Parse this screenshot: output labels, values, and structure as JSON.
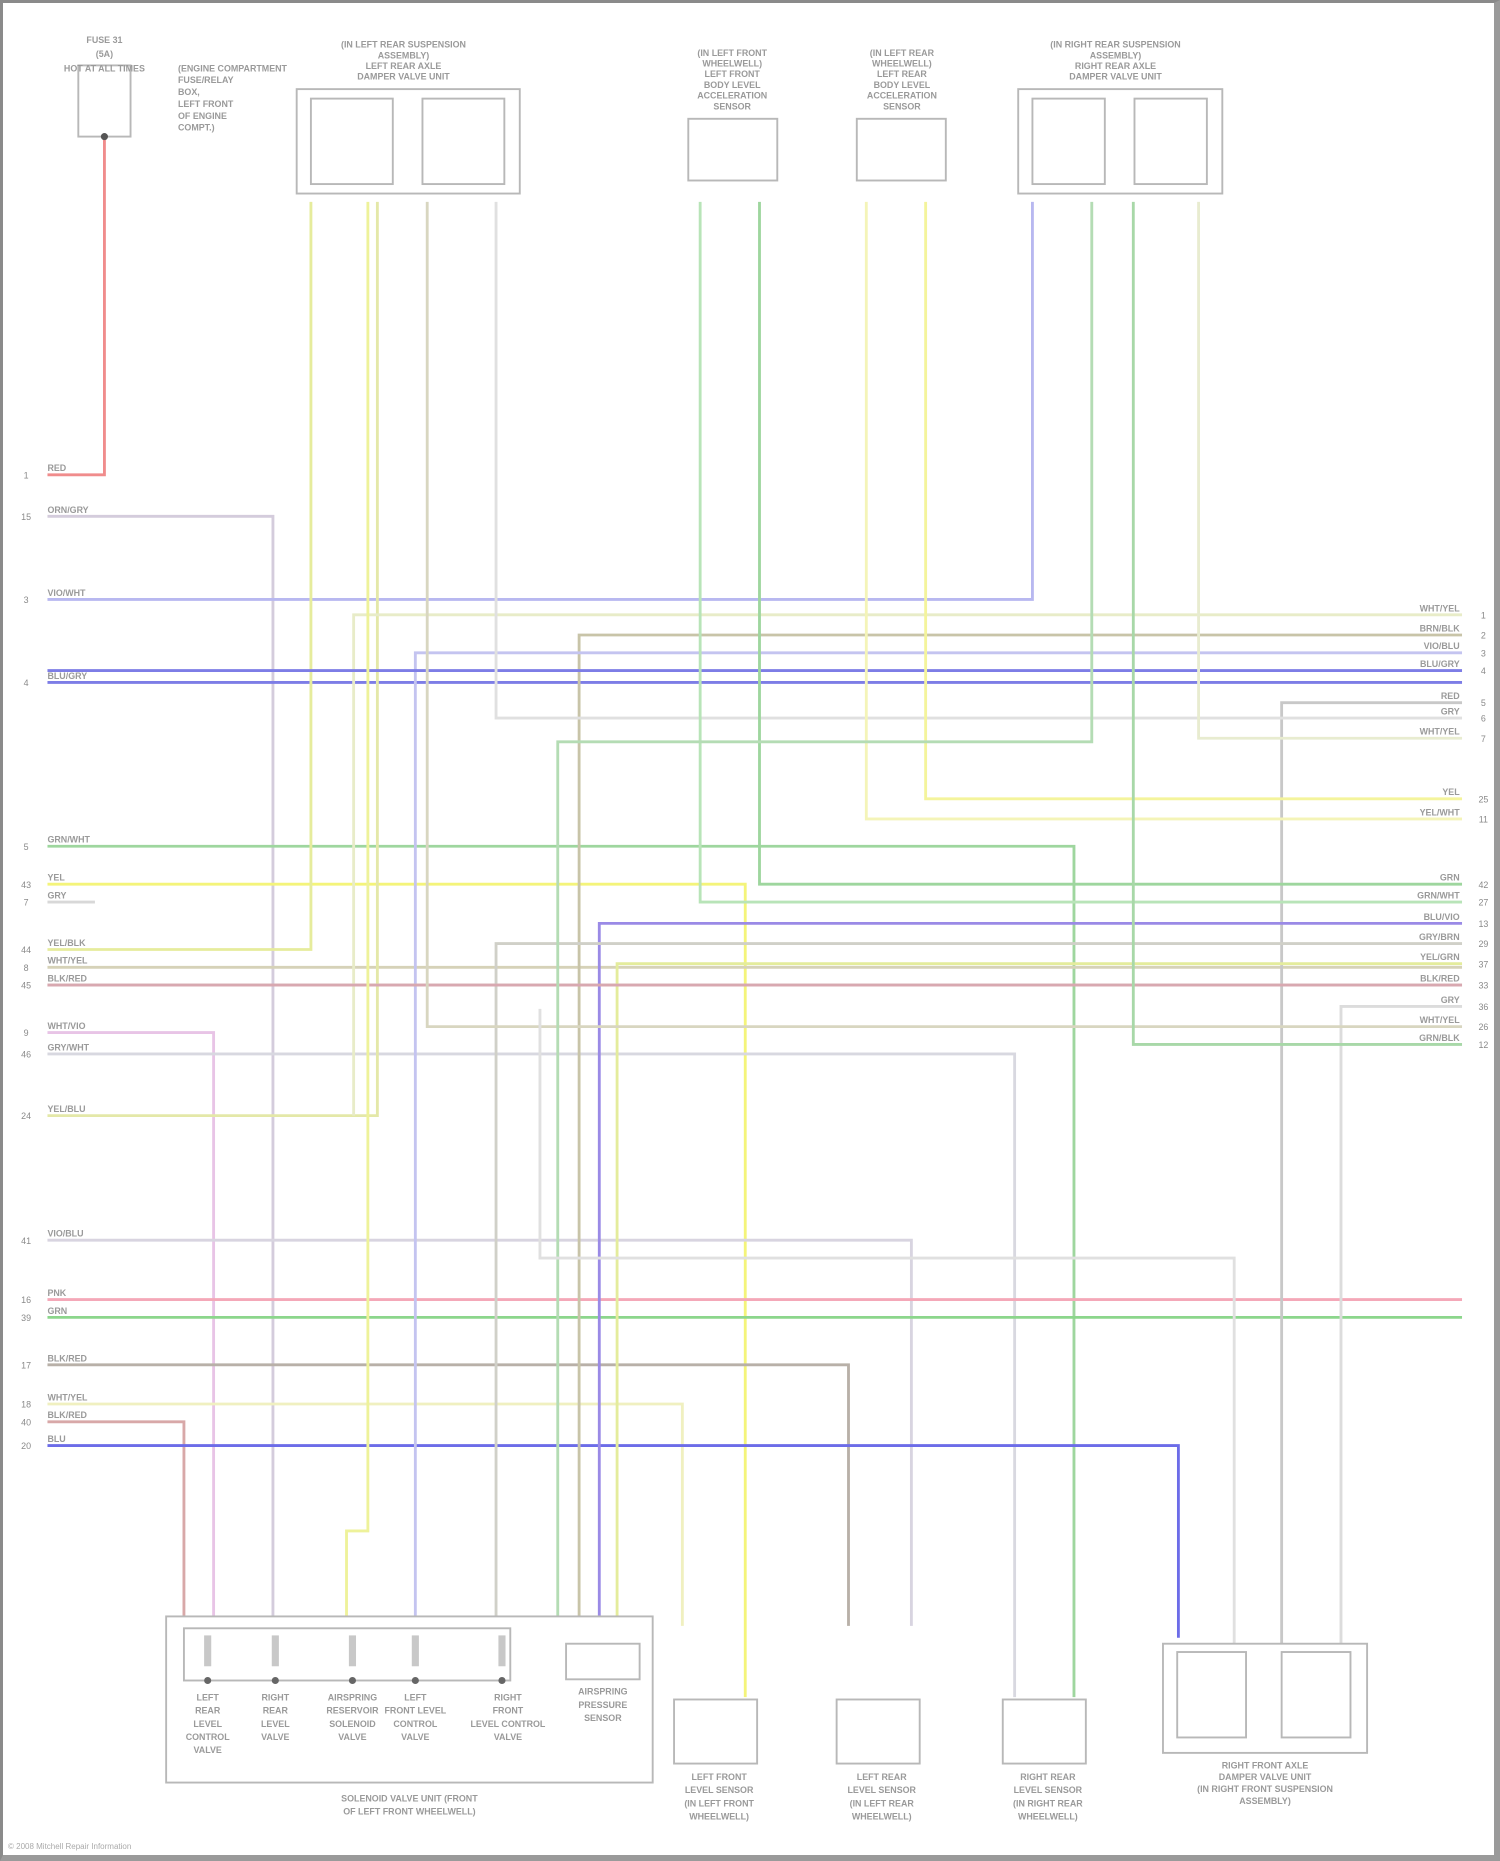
{
  "diagram": {
    "footer": "© 2008 Mitchell Repair Information",
    "fuse": {
      "lines": [
        "FUSE 31",
        "(5A)",
        "HOT AT ALL TIMES"
      ],
      "note": [
        "(ENGINE COMPARTMENT",
        "FUSE/RELAY",
        "BOX,",
        "LEFT FRONT",
        "OF ENGINE",
        "COMPT.)"
      ]
    },
    "components_top": [
      {
        "name": "left-rear-axle-damper-valve-unit",
        "lines": [
          "(IN LEFT REAR SUSPENSION",
          "ASSEMBLY)",
          "LEFT REAR AXLE",
          "DAMPER VALVE UNIT"
        ]
      },
      {
        "name": "left-front-body-acceleration-sensor",
        "lines": [
          "(IN LEFT FRONT",
          "WHEELWELL)",
          "LEFT FRONT",
          "BODY LEVEL",
          "ACCELERATION",
          "SENSOR"
        ]
      },
      {
        "name": "left-rear-body-acceleration-sensor",
        "lines": [
          "(IN LEFT REAR",
          "WHEELWELL)",
          "LEFT REAR",
          "BODY LEVEL",
          "ACCELERATION",
          "SENSOR"
        ]
      },
      {
        "name": "right-rear-axle-damper-valve-unit",
        "lines": [
          "(IN RIGHT REAR SUSPENSION",
          "ASSEMBLY)",
          "RIGHT REAR AXLE",
          "DAMPER VALVE UNIT"
        ]
      }
    ],
    "components_bottom": {
      "valves": [
        {
          "lines": [
            "LEFT",
            "REAR",
            "LEVEL",
            "CONTROL",
            "VALVE"
          ]
        },
        {
          "lines": [
            "RIGHT",
            "REAR",
            "LEVEL",
            "VALVE"
          ]
        },
        {
          "lines": [
            "AIRSPRING",
            "RESERVOIR",
            "SOLENOID",
            "VALVE"
          ]
        },
        {
          "lines": [
            "LEFT",
            "FRONT LEVEL",
            "CONTROL",
            "VALVE"
          ]
        },
        {
          "lines": [
            "RIGHT",
            "FRONT",
            "LEVEL CONTROL",
            "VALVE"
          ]
        }
      ],
      "pressure_sensor": [
        "AIRSPRING",
        "PRESSURE",
        "SENSOR"
      ],
      "solenoid_unit": [
        "SOLENOID VALVE UNIT (FRONT",
        "OF LEFT FRONT WHEELWELL)"
      ],
      "sensors": [
        {
          "lines": [
            "LEFT FRONT",
            "LEVEL SENSOR",
            "(IN LEFT FRONT",
            "WHEELWELL)"
          ]
        },
        {
          "lines": [
            "LEFT REAR",
            "LEVEL SENSOR",
            "(IN LEFT REAR",
            "WHEELWELL)"
          ]
        },
        {
          "lines": [
            "RIGHT REAR",
            "LEVEL SENSOR",
            "(IN RIGHT REAR",
            "WHEELWELL)"
          ]
        }
      ],
      "right_front_damper": [
        "RIGHT FRONT AXLE",
        "DAMPER VALVE UNIT",
        "(IN RIGHT FRONT SUSPENSION",
        "ASSEMBLY)"
      ]
    },
    "left_wires": [
      {
        "pin": "1",
        "label": "RED",
        "color": "#f08c8c"
      },
      {
        "pin": "15",
        "label": "ORN/GRY",
        "color": "#d4ccdc"
      },
      {
        "pin": "3",
        "label": "VIO/WHT",
        "color": "#b8b8f0"
      },
      {
        "pin": "4",
        "label": "BLU/GRY",
        "color": "#7d7de6"
      },
      {
        "pin": "5",
        "label": "GRN/WHT",
        "color": "#9ed69e"
      },
      {
        "pin": "43",
        "label": "YEL",
        "color": "#f4f47a"
      },
      {
        "pin": "7",
        "label": "GRY",
        "color": "#d8d8d8"
      },
      {
        "pin": "44",
        "label": "YEL/BLK",
        "color": "#e6ec9c"
      },
      {
        "pin": "8",
        "label": "WHT/YEL",
        "color": "#d6d2b8"
      },
      {
        "pin": "45",
        "label": "BLK/RED",
        "color": "#d2b4b0"
      },
      {
        "pin": "9",
        "label": "WHT/VIO",
        "color": "#e8c4e6"
      },
      {
        "pin": "46",
        "label": "GRY/WHT",
        "color": "#d8d8e0"
      },
      {
        "pin": "24",
        "label": "YEL/BLU",
        "color": "#e4e8a8"
      },
      {
        "pin": "41",
        "label": "VIO/BLU",
        "color": "#d8d4e0"
      },
      {
        "pin": "16",
        "label": "PNK",
        "color": "#f4a8b8"
      },
      {
        "pin": "39",
        "label": "GRN",
        "color": "#8cd68c"
      },
      {
        "pin": "17",
        "label": "BLK/RED",
        "color": "#b8b0a8"
      },
      {
        "pin": "18",
        "label": "WHT/YEL",
        "color": "#f0f0c0"
      },
      {
        "pin": "40",
        "label": "BLK/RED",
        "color": "#d8a8a8"
      },
      {
        "pin": "20",
        "label": "BLU",
        "color": "#6c6ce8"
      }
    ],
    "right_wires": [
      {
        "pin": "1",
        "label": "WHT/YEL",
        "color": "#e8ecc8"
      },
      {
        "pin": "2",
        "label": "BRN/BLK",
        "color": "#c8c4a8"
      },
      {
        "pin": "3",
        "label": "VIO/BLU",
        "color": "#c4c4f0"
      },
      {
        "pin": "4",
        "label": "BLU/GRY",
        "color": "#7d7de6"
      },
      {
        "pin": "5",
        "label": "RED",
        "color": "#c8c8c8"
      },
      {
        "pin": "6",
        "label": "GRY",
        "color": "#e0e0e0"
      },
      {
        "pin": "7",
        "label": "WHT/YEL",
        "color": "#e8ecd0"
      },
      {
        "pin": "25",
        "label": "YEL",
        "color": "#f4f49c"
      },
      {
        "pin": "11",
        "label": "YEL/WHT",
        "color": "#f4f4b8"
      },
      {
        "pin": "42",
        "label": "GRN",
        "color": "#9ed69e"
      },
      {
        "pin": "27",
        "label": "GRN/WHT",
        "color": "#b8e4b8"
      },
      {
        "pin": "13",
        "label": "BLU/VIO",
        "color": "#9a8ae6"
      },
      {
        "pin": "29",
        "label": "GRY/BRN",
        "color": "#d0d0c8"
      },
      {
        "pin": "37",
        "label": "YEL/GRN",
        "color": "#e4ec9c"
      },
      {
        "pin": "33",
        "label": "BLK/RED",
        "color": "#d8a8b0"
      },
      {
        "pin": "36",
        "label": "GRY",
        "color": "#dcdcdc"
      },
      {
        "pin": "26",
        "label": "WHT/YEL",
        "color": "#d8d6c0"
      },
      {
        "pin": "12",
        "label": "GRN/BLK",
        "color": "#a8d8a8"
      }
    ]
  }
}
